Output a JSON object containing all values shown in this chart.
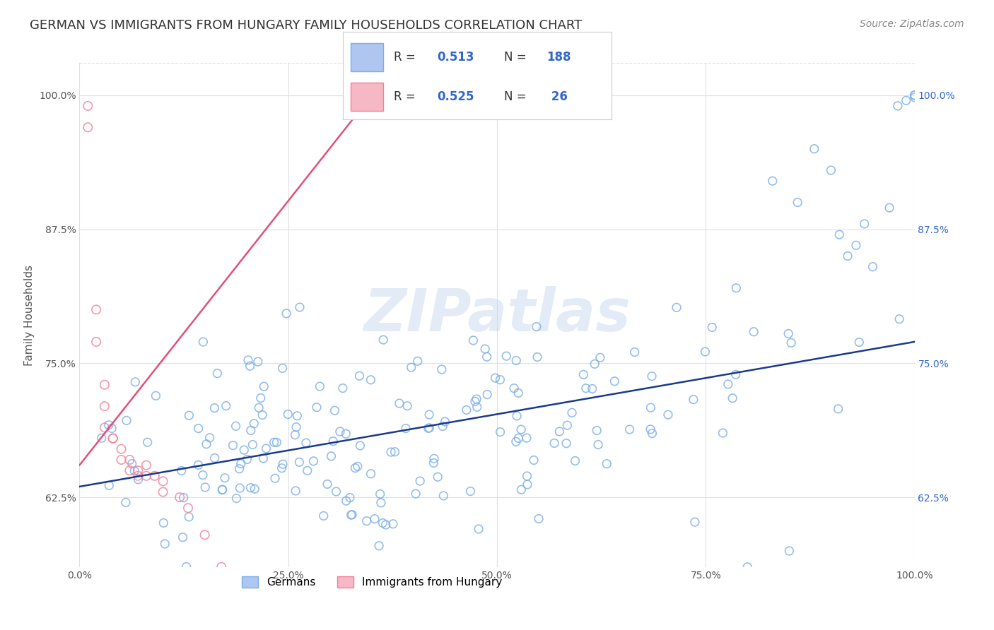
{
  "title": "GERMAN VS IMMIGRANTS FROM HUNGARY FAMILY HOUSEHOLDS CORRELATION CHART",
  "source": "Source: ZipAtlas.com",
  "ylabel": "Family Households",
  "legend_entries": [
    {
      "label": "Germans",
      "color": "#aec6f0",
      "R": "0.513",
      "N": "188"
    },
    {
      "label": "Immigrants from Hungary",
      "color": "#f5b8c4",
      "R": "0.525",
      "N": "26"
    }
  ],
  "blue_scatter_color": "#7aaee8",
  "pink_scatter_color": "#f08098",
  "blue_line_color": "#1a3a8c",
  "pink_line_color": "#e0507a",
  "background_color": "#ffffff",
  "grid_color": "#e0e0e0",
  "watermark_text": "ZIPatlas",
  "watermark_color": "#c8d8f0",
  "title_fontsize": 13,
  "source_fontsize": 10,
  "axis_label_fontsize": 11,
  "tick_fontsize": 10,
  "legend_fontsize": 12,
  "blue_R": 0.513,
  "blue_N": 188,
  "pink_R": 0.525,
  "pink_N": 26,
  "xlim": [
    0.0,
    1.0
  ],
  "ylim": [
    0.56,
    1.03
  ],
  "y_ticks": [
    0.625,
    0.75,
    0.875,
    1.0
  ],
  "x_ticks": [
    0.0,
    0.25,
    0.5,
    0.75,
    1.0
  ]
}
